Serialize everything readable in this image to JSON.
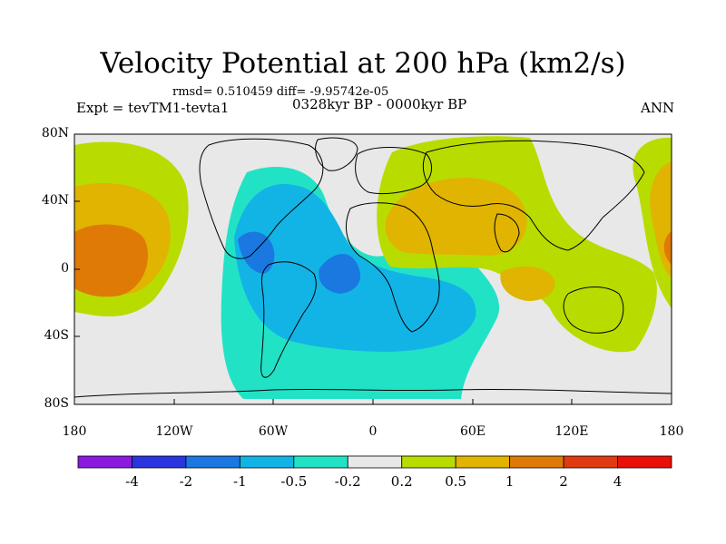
{
  "header": {
    "title": "Velocity Potential at 200 hPa (km2/s)",
    "stats": "rmsd= 0.510459 diff= -9.95742e-05",
    "experiment": "Expt = tevTM1-tevta1",
    "period": "0328kyr BP - 0000kyr BP",
    "season": "ANN"
  },
  "axes": {
    "lat_labels": [
      "80N",
      "40N",
      "0",
      "40S",
      "80S"
    ],
    "lon_labels": [
      "180",
      "120W",
      "60W",
      "0",
      "60E",
      "120E",
      "180"
    ]
  },
  "colorbar": {
    "labels": [
      "-4",
      "-2",
      "-1",
      "-0.5",
      "-0.2",
      "0.2",
      "0.5",
      "1",
      "2",
      "4"
    ],
    "colors": [
      "#8a1ae0",
      "#2a35e0",
      "#1a78e0",
      "#12b4e6",
      "#22e2c6",
      "#e8e8e8",
      "#b8dc00",
      "#e0b400",
      "#e07a06",
      "#e03a10",
      "#e81008"
    ]
  },
  "map": {
    "background": "#e8e8e8",
    "neg_strong": "#1a78e0",
    "neg_mid": "#12b4e6",
    "neg_weak": "#22e2c6",
    "pos_weak": "#b8dc00",
    "pos_mid": "#e0b400",
    "pos_strong": "#e07a06"
  }
}
